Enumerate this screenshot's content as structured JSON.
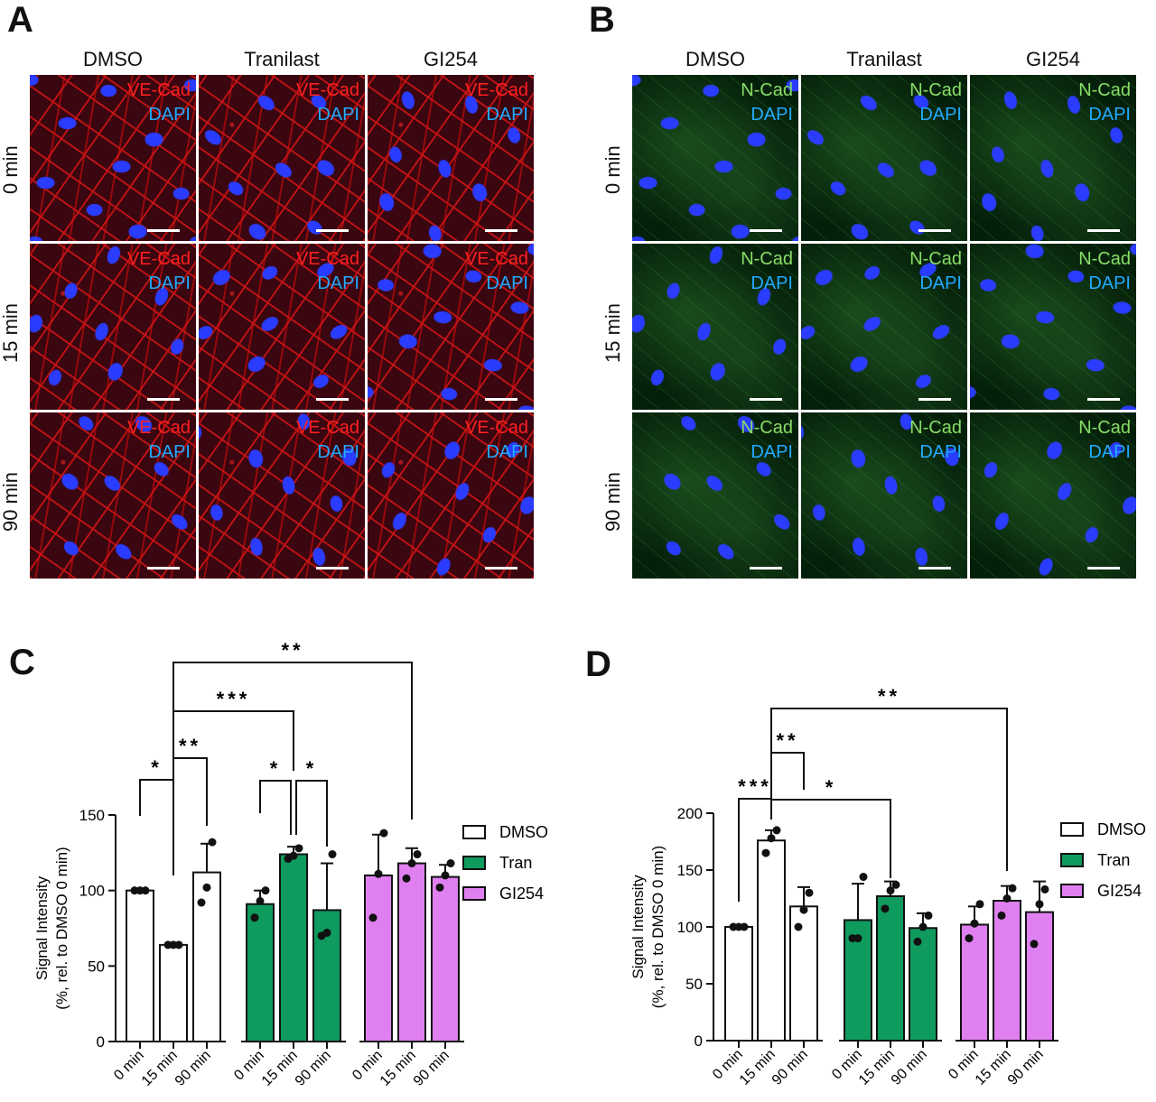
{
  "panels": {
    "A": {
      "letter": "A",
      "columns": [
        "DMSO",
        "Tranilast",
        "GI254"
      ],
      "rows": [
        "0 min",
        "15 min",
        "90 min"
      ],
      "stain_primary": "VE-Cad",
      "stain_secondary": "DAPI",
      "primary_color": "#ff2020"
    },
    "B": {
      "letter": "B",
      "columns": [
        "DMSO",
        "Tranilast",
        "GI254"
      ],
      "rows": [
        "0 min",
        "15 min",
        "90 min"
      ],
      "stain_primary": "N-Cad",
      "stain_secondary": "DAPI",
      "primary_color": "#88dd66"
    },
    "C": {
      "letter": "C"
    },
    "D": {
      "letter": "D"
    }
  },
  "chart_data": [
    {
      "panel": "C",
      "type": "bar",
      "ylabel": "Signal Intensity\n(%, rel. to DMSO 0 min)",
      "ylim": [
        0,
        150
      ],
      "yticks": [
        0,
        50,
        100,
        150
      ],
      "categories": [
        "0 min",
        "15 min",
        "90 min"
      ],
      "series": [
        {
          "name": "DMSO",
          "color": "#ffffff",
          "values": [
            100,
            64,
            112
          ],
          "sd": [
            0,
            0,
            19
          ],
          "points": [
            [
              100,
              100,
              100
            ],
            [
              64,
              64,
              64
            ],
            [
              92,
              102,
              132
            ]
          ]
        },
        {
          "name": "Tran",
          "color": "#0f9a5e",
          "values": [
            91,
            124,
            87
          ],
          "sd": [
            9,
            5,
            31
          ],
          "points": [
            [
              82,
              93,
              100
            ],
            [
              121,
              123,
              128
            ],
            [
              70,
              72,
              124
            ]
          ]
        },
        {
          "name": "GI254",
          "color": "#e080f0",
          "values": [
            110,
            118,
            109
          ],
          "sd": [
            27,
            10,
            8
          ],
          "points": [
            [
              82,
              111,
              138
            ],
            [
              108,
              118,
              124
            ],
            [
              102,
              110,
              118
            ]
          ]
        }
      ],
      "significance": [
        {
          "label": "*",
          "from": "DMSO 0 min",
          "to": "DMSO 15 min"
        },
        {
          "label": "**",
          "from": "DMSO 15 min",
          "to": "DMSO 90 min"
        },
        {
          "label": "***",
          "from": "DMSO 15 min",
          "to": "Tran 15 min"
        },
        {
          "label": "**",
          "from": "DMSO 15 min",
          "to": "GI254 15 min"
        },
        {
          "label": "*",
          "from": "Tran 0 min",
          "to": "Tran 15 min"
        },
        {
          "label": "*",
          "from": "Tran 15 min",
          "to": "Tran 90 min"
        }
      ],
      "legend": [
        "DMSO",
        "Tran",
        "GI254"
      ]
    },
    {
      "panel": "D",
      "type": "bar",
      "ylabel": "Signal Intensity\n(%, rel. to DMSO 0 min)",
      "ylim": [
        0,
        200
      ],
      "yticks": [
        0,
        50,
        100,
        150,
        200
      ],
      "categories": [
        "0 min",
        "15 min",
        "90 min"
      ],
      "series": [
        {
          "name": "DMSO",
          "color": "#ffffff",
          "values": [
            100,
            176,
            118
          ],
          "sd": [
            0,
            9,
            17
          ],
          "points": [
            [
              100,
              100,
              100
            ],
            [
              165,
              178,
              185
            ],
            [
              100,
              115,
              130
            ]
          ]
        },
        {
          "name": "Tran",
          "color": "#0f9a5e",
          "values": [
            106,
            127,
            99
          ],
          "sd": [
            32,
            13,
            13
          ],
          "points": [
            [
              90,
              90,
              144
            ],
            [
              116,
              132,
              137
            ],
            [
              87,
              100,
              110
            ]
          ]
        },
        {
          "name": "GI254",
          "color": "#e080f0",
          "values": [
            102,
            123,
            113
          ],
          "sd": [
            16,
            13,
            27
          ],
          "points": [
            [
              90,
              103,
              120
            ],
            [
              110,
              125,
              134
            ],
            [
              85,
              120,
              133
            ]
          ]
        }
      ],
      "significance": [
        {
          "label": "***",
          "from": "DMSO 0 min",
          "to": "DMSO 15 min"
        },
        {
          "label": "**",
          "from": "DMSO 15 min",
          "to": "DMSO 90 min"
        },
        {
          "label": "*",
          "from": "DMSO 15 min",
          "to": "Tran 15 min"
        },
        {
          "label": "**",
          "from": "DMSO 15 min",
          "to": "GI254 15 min"
        }
      ],
      "legend": [
        "DMSO",
        "Tran",
        "GI254"
      ]
    }
  ]
}
